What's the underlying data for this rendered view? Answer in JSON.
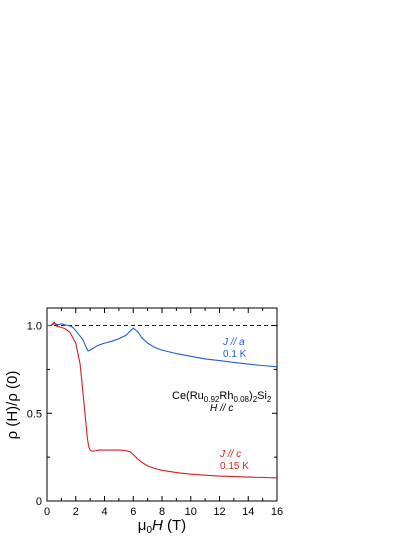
{
  "chart_data": {
    "type": "line",
    "xlim": [
      0,
      16
    ],
    "ylim": [
      0,
      1.1
    ],
    "x_ticks": [
      0,
      2,
      4,
      6,
      8,
      10,
      12,
      14,
      16
    ],
    "x_tick_labels": [
      "0",
      "2",
      "4",
      "6",
      "8",
      "10",
      "12",
      "14",
      "16"
    ],
    "y_ticks": [
      0,
      0.5,
      1.0
    ],
    "y_tick_labels": [
      "0",
      "0.5",
      "1.0"
    ],
    "xlabel": {
      "prefix": "μ",
      "sub": "0",
      "italic": "H",
      "suffix": " (T)"
    },
    "ylabel": "ρ (H)/ρ (0)",
    "reference_line": {
      "y": 1.0,
      "style": "dashed",
      "color": "#000000"
    },
    "grid": false,
    "annotations": {
      "compound": {
        "parts": [
          "Ce(Ru",
          "0.92",
          "Rh",
          "0.08",
          ")",
          "2",
          "Si",
          "2"
        ],
        "field": "H // c"
      },
      "blue_label": {
        "line1": "J // a",
        "line2": "0.1 K",
        "color": "#1f5fd6"
      },
      "red_label": {
        "line1": "J // c",
        "line2": "0.15 K",
        "color": "#e01b1b"
      }
    },
    "series": [
      {
        "color": "#1f5fd6",
        "x": [
          0,
          0.2,
          0.5,
          0.8,
          1.0,
          1.2,
          1.5,
          1.8,
          2.0,
          2.2,
          2.5,
          2.7,
          2.85,
          3.0,
          3.2,
          3.5,
          4.0,
          4.5,
          5.0,
          5.5,
          5.8,
          6.0,
          6.3,
          6.6,
          7.0,
          7.5,
          8,
          9,
          10,
          11,
          12,
          13,
          14,
          15,
          16
        ],
        "y": [
          1.0,
          1.0,
          1.01,
          1.005,
          1.01,
          1.005,
          1.0,
          0.99,
          0.97,
          0.95,
          0.92,
          0.88,
          0.855,
          0.86,
          0.87,
          0.885,
          0.9,
          0.91,
          0.925,
          0.945,
          0.97,
          0.985,
          0.965,
          0.93,
          0.9,
          0.875,
          0.86,
          0.84,
          0.825,
          0.81,
          0.8,
          0.79,
          0.78,
          0.772,
          0.765
        ]
      },
      {
        "color": "#e01b1b",
        "x": [
          0,
          0.3,
          0.5,
          0.7,
          1.0,
          1.3,
          1.6,
          2.0,
          2.3,
          2.5,
          2.7,
          2.8,
          2.9,
          3.0,
          3.1,
          3.3,
          3.6,
          4.0,
          4.5,
          5.0,
          5.5,
          5.8,
          6.0,
          6.3,
          6.6,
          7.0,
          7.5,
          8,
          9,
          10,
          11,
          12,
          13,
          14,
          15,
          16
        ],
        "y": [
          1.0,
          1.0,
          1.02,
          0.995,
          0.99,
          0.98,
          0.96,
          0.9,
          0.78,
          0.62,
          0.45,
          0.36,
          0.31,
          0.29,
          0.285,
          0.285,
          0.29,
          0.29,
          0.29,
          0.29,
          0.287,
          0.28,
          0.265,
          0.24,
          0.22,
          0.2,
          0.185,
          0.175,
          0.162,
          0.153,
          0.147,
          0.142,
          0.139,
          0.136,
          0.134,
          0.132
        ]
      }
    ]
  }
}
